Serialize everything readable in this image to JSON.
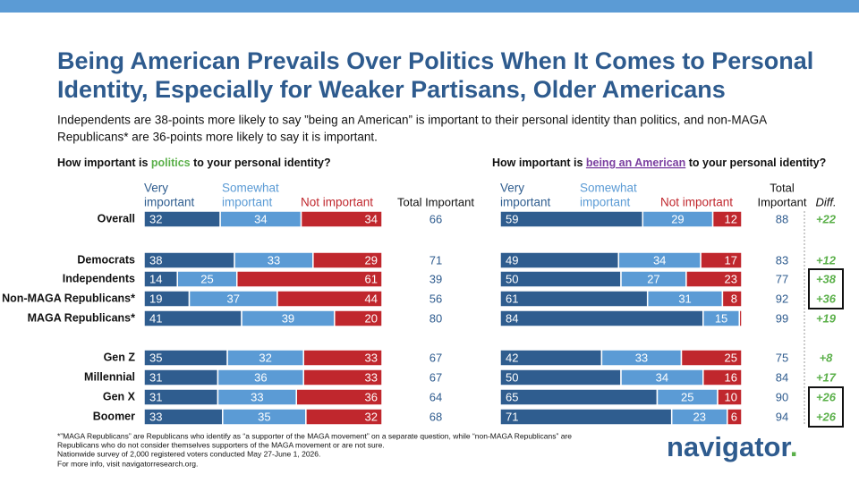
{
  "title": [
    "Being American Prevails Over Politics When It Comes to Personal",
    "Identity, Especially for Weaker Partisans, Older Americans"
  ],
  "subtitle": [
    "Independents are 38-points more likely to say ”being an American” is important to their personal identity than politics, and non-MAGA",
    "Republicans* are 36-points more likely to say it is important."
  ],
  "footnotes": [
    "*”MAGA Republicans” are Republicans who identify as “a supporter of the MAGA movement” on a separate question, while “non-MAGA Republicans” are",
    "Republicans who do not consider themselves supporters of the MAGA movement or are not sure.",
    "Nationwide survey of 2,000 registered voters conducted May 27-June 1, 2026.",
    "For more info, visit navigatorresearch.org."
  ],
  "logo": "navigator",
  "chart_data": [
    {
      "type": "stacked-bar",
      "title": [
        "How important is ",
        "politics",
        " to your personal identity?"
      ],
      "highlight_color": "#5bb04a",
      "categories": [
        "Overall",
        "Democrats",
        "Independents",
        "Non-MAGA Republicans*",
        "MAGA Republicans*",
        "Gen Z",
        "Millennial",
        "Gen X",
        "Boomer"
      ],
      "xlim": [
        0,
        100
      ],
      "series": [
        {
          "name": [
            "Very",
            "important"
          ],
          "color": "#2f5d8f",
          "values": [
            32,
            38,
            14,
            19,
            41,
            35,
            31,
            31,
            33
          ]
        },
        {
          "name": [
            "Somewhat",
            "important"
          ],
          "color": "#5b9bd5",
          "values": [
            34,
            33,
            25,
            37,
            39,
            32,
            36,
            33,
            35
          ]
        },
        {
          "name": [
            "Not important"
          ],
          "color": "#c0272d",
          "values": [
            34,
            29,
            61,
            44,
            20,
            33,
            33,
            36,
            32
          ]
        }
      ],
      "total": {
        "name": [
          "Total Important"
        ],
        "values": [
          66,
          71,
          39,
          56,
          80,
          67,
          67,
          64,
          68
        ]
      }
    },
    {
      "type": "stacked-bar",
      "title": [
        "How important is ",
        "being an American",
        " to your personal identity?"
      ],
      "highlight_color": "#7b3fa0",
      "categories": [
        "Overall",
        "Democrats",
        "Independents",
        "Non-MAGA Republicans*",
        "MAGA Republicans*",
        "Gen Z",
        "Millennial",
        "Gen X",
        "Boomer"
      ],
      "xlim": [
        0,
        100
      ],
      "series": [
        {
          "name": [
            "Very",
            "important"
          ],
          "color": "#2f5d8f",
          "values": [
            59,
            49,
            50,
            61,
            84,
            42,
            50,
            65,
            71
          ]
        },
        {
          "name": [
            "Somewhat",
            "important"
          ],
          "color": "#5b9bd5",
          "values": [
            29,
            34,
            27,
            31,
            15,
            33,
            34,
            25,
            23
          ]
        },
        {
          "name": [
            "Not important"
          ],
          "color": "#c0272d",
          "values": [
            12,
            17,
            23,
            8,
            1,
            25,
            16,
            10,
            6
          ],
          "value_labels": [
            "12",
            "17",
            "23",
            "8",
            null,
            "25",
            "16",
            "10",
            "6"
          ]
        }
      ],
      "total": {
        "name": [
          "Total",
          "Important"
        ],
        "values": [
          88,
          83,
          77,
          92,
          99,
          75,
          84,
          90,
          94
        ]
      },
      "diff": {
        "name": "Diff.",
        "color": "#5bb04a",
        "values": [
          22,
          12,
          38,
          36,
          19,
          8,
          17,
          26,
          26
        ],
        "value_labels": [
          "+22",
          "+12",
          "+38",
          "+36",
          "+19",
          "+8",
          "+17",
          "+26",
          "+26"
        ],
        "boxed": [
          false,
          false,
          true,
          true,
          false,
          false,
          false,
          true,
          true
        ]
      }
    }
  ]
}
